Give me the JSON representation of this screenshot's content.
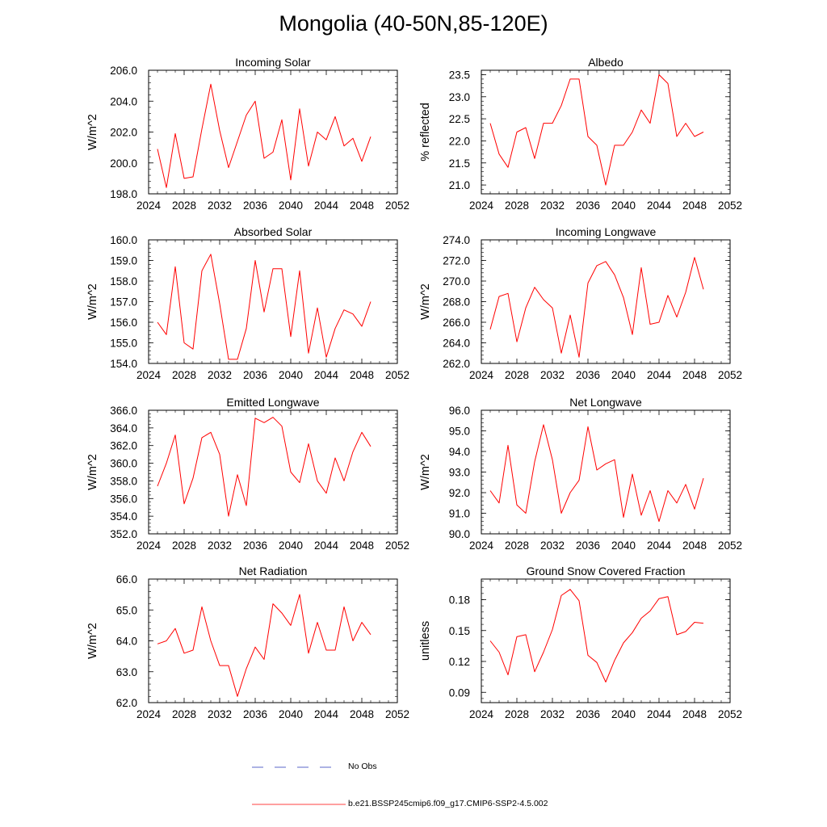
{
  "figure": {
    "title": "Mongolia (40-50N,85-120E)"
  },
  "legend": {
    "obs_label": "No Obs",
    "obs_color": "#5b67c9",
    "model_label": "b.e21.BSSP245cmip6.f09_g17.CMIP6-SSP2-4.5.002",
    "model_color": "#ff0000"
  },
  "chart_data": [
    {
      "type": "line",
      "title": "Incoming Solar",
      "ylabel": "W/m^2",
      "xlim": [
        2024,
        2052
      ],
      "xticks": [
        2024,
        2028,
        2032,
        2036,
        2040,
        2044,
        2048,
        2052
      ],
      "ylim": [
        198,
        206
      ],
      "yticks": [
        198,
        200,
        202,
        204,
        206
      ],
      "ytick_labels": [
        "198.0",
        "200.0",
        "202.0",
        "204.0",
        "206.0"
      ],
      "x": [
        2025,
        2026,
        2027,
        2028,
        2029,
        2030,
        2031,
        2032,
        2033,
        2034,
        2035,
        2036,
        2037,
        2038,
        2039,
        2040,
        2041,
        2042,
        2043,
        2044,
        2045,
        2046,
        2047,
        2048,
        2049
      ],
      "values": [
        200.9,
        198.4,
        201.9,
        199.0,
        199.1,
        202.2,
        205.1,
        202.1,
        199.7,
        201.4,
        203.1,
        204.0,
        200.3,
        200.7,
        202.8,
        198.9,
        203.5,
        199.8,
        202.0,
        201.5,
        203.0,
        201.1,
        201.6,
        200.1,
        201.7
      ]
    },
    {
      "type": "line",
      "title": "Albedo",
      "ylabel": "% reflected",
      "xlim": [
        2024,
        2052
      ],
      "xticks": [
        2024,
        2028,
        2032,
        2036,
        2040,
        2044,
        2048,
        2052
      ],
      "ylim": [
        20.8,
        23.6
      ],
      "yticks": [
        21.0,
        21.5,
        22.0,
        22.5,
        23.0,
        23.5
      ],
      "ytick_labels": [
        "21.0",
        "21.5",
        "22.0",
        "22.5",
        "23.0",
        "23.5"
      ],
      "x": [
        2025,
        2026,
        2027,
        2028,
        2029,
        2030,
        2031,
        2032,
        2033,
        2034,
        2035,
        2036,
        2037,
        2038,
        2039,
        2040,
        2041,
        2042,
        2043,
        2044,
        2045,
        2046,
        2047,
        2048,
        2049
      ],
      "values": [
        22.4,
        21.7,
        21.4,
        22.2,
        22.3,
        21.6,
        22.4,
        22.4,
        22.8,
        23.4,
        23.4,
        22.1,
        21.9,
        21.0,
        21.9,
        21.9,
        22.2,
        22.7,
        22.4,
        23.5,
        23.3,
        22.1,
        22.4,
        22.1,
        22.2
      ]
    },
    {
      "type": "line",
      "title": "Absorbed Solar",
      "ylabel": "W/m^2",
      "xlim": [
        2024,
        2052
      ],
      "xticks": [
        2024,
        2028,
        2032,
        2036,
        2040,
        2044,
        2048,
        2052
      ],
      "ylim": [
        154,
        160
      ],
      "yticks": [
        154,
        155,
        156,
        157,
        158,
        159,
        160
      ],
      "ytick_labels": [
        "154.0",
        "155.0",
        "156.0",
        "157.0",
        "158.0",
        "159.0",
        "160.0"
      ],
      "x": [
        2025,
        2026,
        2027,
        2028,
        2029,
        2030,
        2031,
        2032,
        2033,
        2034,
        2035,
        2036,
        2037,
        2038,
        2039,
        2040,
        2041,
        2042,
        2043,
        2044,
        2045,
        2046,
        2047,
        2048,
        2049
      ],
      "values": [
        156.0,
        155.4,
        158.7,
        155.0,
        154.7,
        158.5,
        159.3,
        156.9,
        154.2,
        154.2,
        155.7,
        159.0,
        156.5,
        158.6,
        158.6,
        155.3,
        158.5,
        154.5,
        156.7,
        154.3,
        155.7,
        156.6,
        156.4,
        155.8,
        157.0
      ]
    },
    {
      "type": "line",
      "title": "Incoming Longwave",
      "ylabel": "W/m^2",
      "xlim": [
        2024,
        2052
      ],
      "xticks": [
        2024,
        2028,
        2032,
        2036,
        2040,
        2044,
        2048,
        2052
      ],
      "ylim": [
        262,
        274
      ],
      "yticks": [
        262,
        264,
        266,
        268,
        270,
        272,
        274
      ],
      "ytick_labels": [
        "262.0",
        "264.0",
        "266.0",
        "268.0",
        "270.0",
        "272.0",
        "274.0"
      ],
      "x": [
        2025,
        2026,
        2027,
        2028,
        2029,
        2030,
        2031,
        2032,
        2033,
        2034,
        2035,
        2036,
        2037,
        2038,
        2039,
        2040,
        2041,
        2042,
        2043,
        2044,
        2045,
        2046,
        2047,
        2048,
        2049
      ],
      "values": [
        265.3,
        268.5,
        268.8,
        264.1,
        267.4,
        269.4,
        268.2,
        267.4,
        263.0,
        266.7,
        262.6,
        269.8,
        271.5,
        271.9,
        270.6,
        268.4,
        264.8,
        271.3,
        265.8,
        266.0,
        268.6,
        266.5,
        268.9,
        272.3,
        269.2
      ]
    },
    {
      "type": "line",
      "title": "Emitted Longwave",
      "ylabel": "W/m^2",
      "xlim": [
        2024,
        2052
      ],
      "xticks": [
        2024,
        2028,
        2032,
        2036,
        2040,
        2044,
        2048,
        2052
      ],
      "ylim": [
        352,
        366
      ],
      "yticks": [
        352,
        354,
        356,
        358,
        360,
        362,
        364,
        366
      ],
      "ytick_labels": [
        "352.0",
        "354.0",
        "356.0",
        "358.0",
        "360.0",
        "362.0",
        "364.0",
        "366.0"
      ],
      "x": [
        2025,
        2026,
        2027,
        2028,
        2029,
        2030,
        2031,
        2032,
        2033,
        2034,
        2035,
        2036,
        2037,
        2038,
        2039,
        2040,
        2041,
        2042,
        2043,
        2044,
        2045,
        2046,
        2047,
        2048,
        2049
      ],
      "values": [
        357.4,
        360.0,
        363.2,
        355.4,
        358.3,
        362.9,
        363.5,
        361.0,
        354.0,
        358.7,
        355.2,
        365.1,
        364.6,
        365.2,
        364.2,
        359.0,
        357.8,
        362.2,
        358.0,
        356.6,
        360.6,
        358.0,
        361.3,
        363.5,
        361.9
      ]
    },
    {
      "type": "line",
      "title": "Net Longwave",
      "ylabel": "W/m^2",
      "xlim": [
        2024,
        2052
      ],
      "xticks": [
        2024,
        2028,
        2032,
        2036,
        2040,
        2044,
        2048,
        2052
      ],
      "ylim": [
        90,
        96
      ],
      "yticks": [
        90,
        91,
        92,
        93,
        94,
        95,
        96
      ],
      "ytick_labels": [
        "90.0",
        "91.0",
        "92.0",
        "93.0",
        "94.0",
        "95.0",
        "96.0"
      ],
      "x": [
        2025,
        2026,
        2027,
        2028,
        2029,
        2030,
        2031,
        2032,
        2033,
        2034,
        2035,
        2036,
        2037,
        2038,
        2039,
        2040,
        2041,
        2042,
        2043,
        2044,
        2045,
        2046,
        2047,
        2048,
        2049
      ],
      "values": [
        92.1,
        91.5,
        94.3,
        91.4,
        91.0,
        93.5,
        95.3,
        93.6,
        91.0,
        92.0,
        92.6,
        95.2,
        93.1,
        93.4,
        93.6,
        90.8,
        92.9,
        90.9,
        92.1,
        90.6,
        92.1,
        91.5,
        92.4,
        91.2,
        92.7
      ]
    },
    {
      "type": "line",
      "title": "Net Radiation",
      "ylabel": "W/m^2",
      "xlim": [
        2024,
        2052
      ],
      "xticks": [
        2024,
        2028,
        2032,
        2036,
        2040,
        2044,
        2048,
        2052
      ],
      "ylim": [
        62,
        66
      ],
      "yticks": [
        62,
        63,
        64,
        65,
        66
      ],
      "ytick_labels": [
        "62.0",
        "63.0",
        "64.0",
        "65.0",
        "66.0"
      ],
      "x": [
        2025,
        2026,
        2027,
        2028,
        2029,
        2030,
        2031,
        2032,
        2033,
        2034,
        2035,
        2036,
        2037,
        2038,
        2039,
        2040,
        2041,
        2042,
        2043,
        2044,
        2045,
        2046,
        2047,
        2048,
        2049
      ],
      "values": [
        63.9,
        64.0,
        64.4,
        63.6,
        63.7,
        65.1,
        64.0,
        63.2,
        63.2,
        62.2,
        63.1,
        63.8,
        63.4,
        65.2,
        64.9,
        64.5,
        65.5,
        63.6,
        64.6,
        63.7,
        63.7,
        65.1,
        64.0,
        64.6,
        64.2
      ]
    },
    {
      "type": "line",
      "title": "Ground Snow Covered Fraction",
      "ylabel": "unitless",
      "xlim": [
        2024,
        2052
      ],
      "xticks": [
        2024,
        2028,
        2032,
        2036,
        2040,
        2044,
        2048,
        2052
      ],
      "ylim": [
        0.08,
        0.2
      ],
      "yticks": [
        0.09,
        0.12,
        0.15,
        0.18
      ],
      "ytick_labels": [
        "0.09",
        "0.12",
        "0.15",
        "0.18"
      ],
      "x": [
        2025,
        2026,
        2027,
        2028,
        2029,
        2030,
        2031,
        2032,
        2033,
        2034,
        2035,
        2036,
        2037,
        2038,
        2039,
        2040,
        2041,
        2042,
        2043,
        2044,
        2045,
        2046,
        2047,
        2048,
        2049
      ],
      "values": [
        0.14,
        0.129,
        0.107,
        0.144,
        0.146,
        0.11,
        0.129,
        0.151,
        0.184,
        0.19,
        0.179,
        0.126,
        0.119,
        0.1,
        0.121,
        0.138,
        0.148,
        0.162,
        0.169,
        0.181,
        0.183,
        0.146,
        0.149,
        0.158,
        0.157
      ]
    }
  ]
}
